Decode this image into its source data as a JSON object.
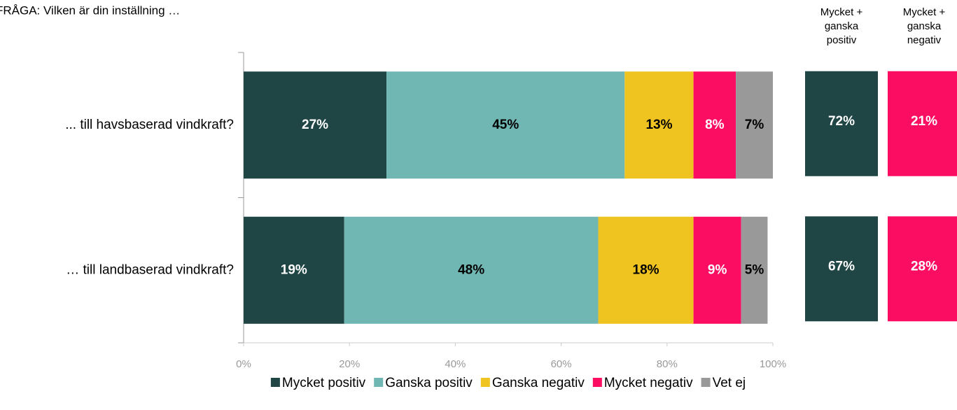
{
  "chart_data": {
    "type": "bar",
    "orientation": "horizontal",
    "stacked": true,
    "title": "FRÅGA: Vilken är din inställning …",
    "categories": [
      "... till havsbaserad vindkraft?",
      "… till landbaserad vindkraft?"
    ],
    "series": [
      {
        "name": "Mycket positiv",
        "color": "#1f4545",
        "label_color": "#ffffff",
        "values": [
          27,
          19
        ],
        "value_labels": [
          "27%",
          "19%"
        ]
      },
      {
        "name": "Ganska positiv",
        "color": "#70b6b3",
        "label_color": "#000000",
        "values": [
          45,
          48
        ],
        "value_labels": [
          "45%",
          "48%"
        ]
      },
      {
        "name": "Ganska negativ",
        "color": "#f0c420",
        "label_color": "#000000",
        "values": [
          13,
          18
        ],
        "value_labels": [
          "13%",
          "18%"
        ]
      },
      {
        "name": "Mycket negativ",
        "color": "#fb0e62",
        "label_color": "#ffffff",
        "values": [
          8,
          9
        ],
        "value_labels": [
          "8%",
          "9%"
        ]
      },
      {
        "name": "Vet ej",
        "color": "#999999",
        "label_color": "#000000",
        "values": [
          7,
          5
        ],
        "value_labels": [
          "7%",
          "5%"
        ]
      }
    ],
    "xlim": [
      0,
      100
    ],
    "xticks": [
      {
        "value": 0,
        "label": "0%"
      },
      {
        "value": 20,
        "label": "20%"
      },
      {
        "value": 40,
        "label": "40%"
      },
      {
        "value": 60,
        "label": "60%"
      },
      {
        "value": 80,
        "label": "80%"
      },
      {
        "value": 100,
        "label": "100%"
      }
    ],
    "summary": [
      {
        "name": "Mycket + ganska positiv",
        "color": "#1f4545",
        "values": [
          72,
          67
        ],
        "value_labels": [
          "72%",
          "67%"
        ]
      },
      {
        "name": "Mycket + ganska negativ",
        "color": "#fb0e62",
        "values": [
          21,
          28
        ],
        "value_labels": [
          "21%",
          "28%"
        ]
      }
    ],
    "legend": "bottom"
  }
}
